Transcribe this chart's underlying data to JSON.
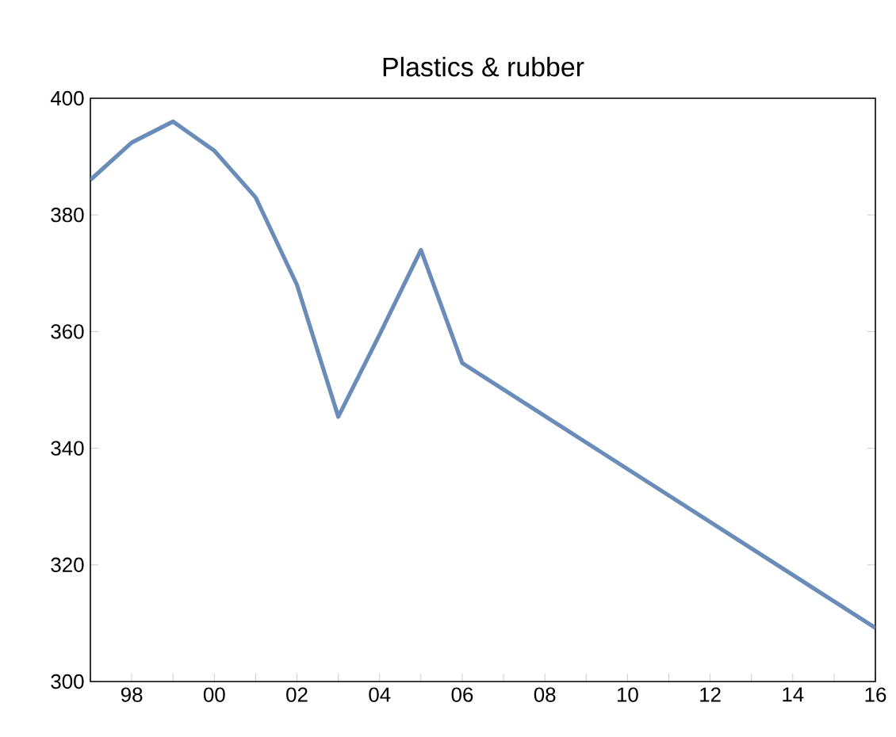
{
  "chart_data": {
    "type": "line",
    "title": "Plastics & rubber",
    "x": [
      1997,
      1998,
      1999,
      2000,
      2001,
      2002,
      2003,
      2004,
      2005,
      2006,
      2016
    ],
    "values": [
      386,
      392.4,
      396,
      391,
      383,
      368,
      345.4,
      359.5,
      374,
      354.6,
      309.2
    ],
    "color": "#6a8cb8",
    "xlim": [
      1997,
      2016
    ],
    "xticks": [
      {
        "value": 1997,
        "label": null
      },
      {
        "value": 1998,
        "label": "98"
      },
      {
        "value": 1999,
        "label": null
      },
      {
        "value": 2000,
        "label": "00"
      },
      {
        "value": 2001,
        "label": null
      },
      {
        "value": 2002,
        "label": "02"
      },
      {
        "value": 2003,
        "label": null
      },
      {
        "value": 2004,
        "label": "04"
      },
      {
        "value": 2005,
        "label": null
      },
      {
        "value": 2006,
        "label": "06"
      },
      {
        "value": 2007,
        "label": null
      },
      {
        "value": 2008,
        "label": "08"
      },
      {
        "value": 2009,
        "label": null
      },
      {
        "value": 2010,
        "label": "10"
      },
      {
        "value": 2011,
        "label": null
      },
      {
        "value": 2012,
        "label": "12"
      },
      {
        "value": 2013,
        "label": null
      },
      {
        "value": 2014,
        "label": "14"
      },
      {
        "value": 2015,
        "label": null
      },
      {
        "value": 2016,
        "label": "16"
      }
    ],
    "ylim": [
      300,
      400
    ],
    "yticks": [
      300,
      320,
      340,
      360,
      380,
      400
    ],
    "marker": "none",
    "line_style": "solid"
  }
}
